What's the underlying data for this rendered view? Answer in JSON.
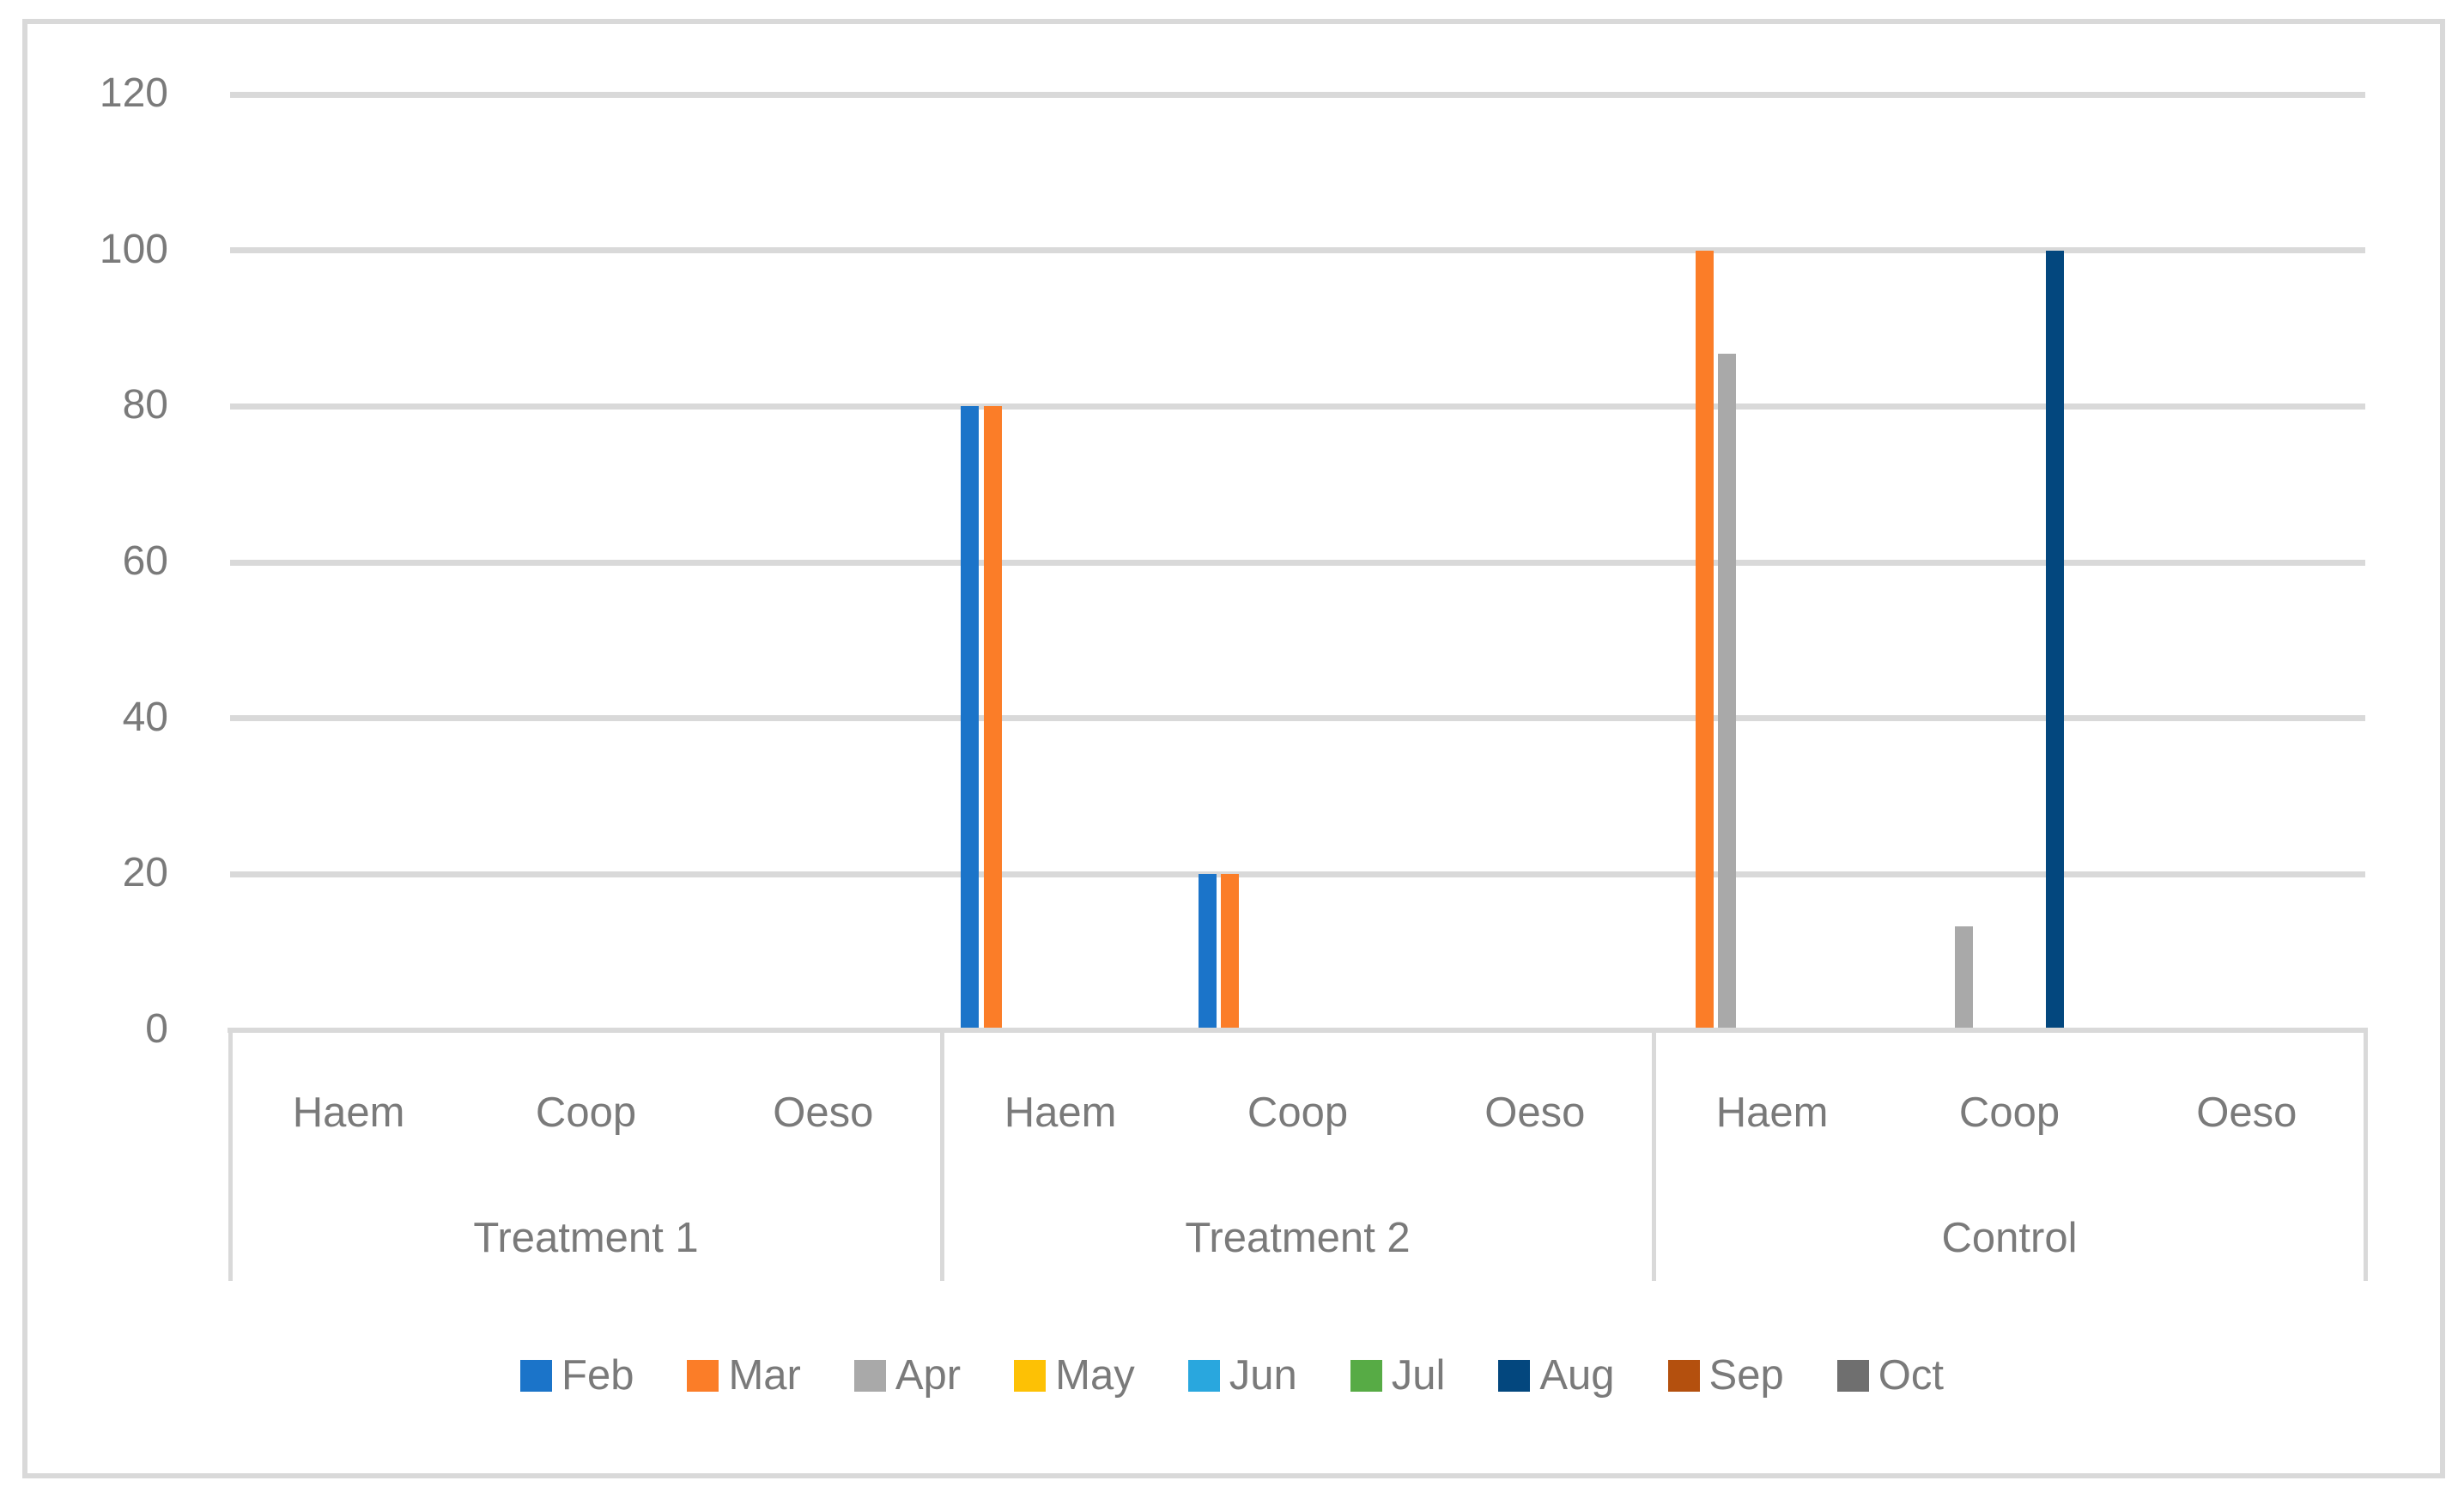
{
  "chart_data": {
    "type": "bar",
    "title": "",
    "xlabel": "",
    "ylabel": "",
    "ylim": [
      0,
      120
    ],
    "yticks": [
      0,
      20,
      40,
      60,
      80,
      100,
      120
    ],
    "grid": true,
    "legend_position": "bottom",
    "groups": [
      {
        "label": "Treatment 1",
        "subcategories": [
          "Haem",
          "Coop",
          "Oeso"
        ]
      },
      {
        "label": "Treatment 2",
        "subcategories": [
          "Haem",
          "Coop",
          "Oeso"
        ]
      },
      {
        "label": "Control",
        "subcategories": [
          "Haem",
          "Coop",
          "Oeso"
        ]
      }
    ],
    "categories": [
      "Haem",
      "Coop",
      "Oeso",
      "Haem",
      "Coop",
      "Oeso",
      "Haem",
      "Coop",
      "Oeso"
    ],
    "series": [
      {
        "name": "Feb",
        "color": "#1B74C9",
        "values": [
          0,
          0,
          0,
          80,
          20,
          0,
          0,
          0,
          0
        ]
      },
      {
        "name": "Mar",
        "color": "#FB7D28",
        "values": [
          0,
          0,
          0,
          80,
          20,
          0,
          100,
          0,
          0
        ]
      },
      {
        "name": "Apr",
        "color": "#A9A9A9",
        "values": [
          0,
          0,
          0,
          0,
          0,
          0,
          86.7,
          13.3,
          0
        ]
      },
      {
        "name": "May",
        "color": "#FDC105",
        "values": [
          0,
          0,
          0,
          0,
          0,
          0,
          0,
          0,
          0
        ]
      },
      {
        "name": "Jun",
        "color": "#29A7DE",
        "values": [
          0,
          0,
          0,
          0,
          0,
          0,
          0,
          0,
          0
        ]
      },
      {
        "name": "Jul",
        "color": "#57AB45",
        "values": [
          0,
          0,
          0,
          0,
          0,
          0,
          0,
          0,
          0
        ]
      },
      {
        "name": "Aug",
        "color": "#03477E",
        "values": [
          0,
          0,
          0,
          0,
          0,
          0,
          0,
          100,
          0
        ]
      },
      {
        "name": "Sep",
        "color": "#B4500E",
        "values": [
          0,
          0,
          0,
          0,
          0,
          0,
          0,
          0,
          0
        ]
      },
      {
        "name": "Oct",
        "color": "#6F6F6F",
        "values": [
          0,
          0,
          0,
          0,
          0,
          0,
          0,
          0,
          0
        ]
      }
    ],
    "colors": {
      "gridline": "#D9D9D9",
      "axis_line": "#D9D9D9",
      "frame_border": "#D9D9D9",
      "label_text": "#7A7A7A"
    }
  }
}
